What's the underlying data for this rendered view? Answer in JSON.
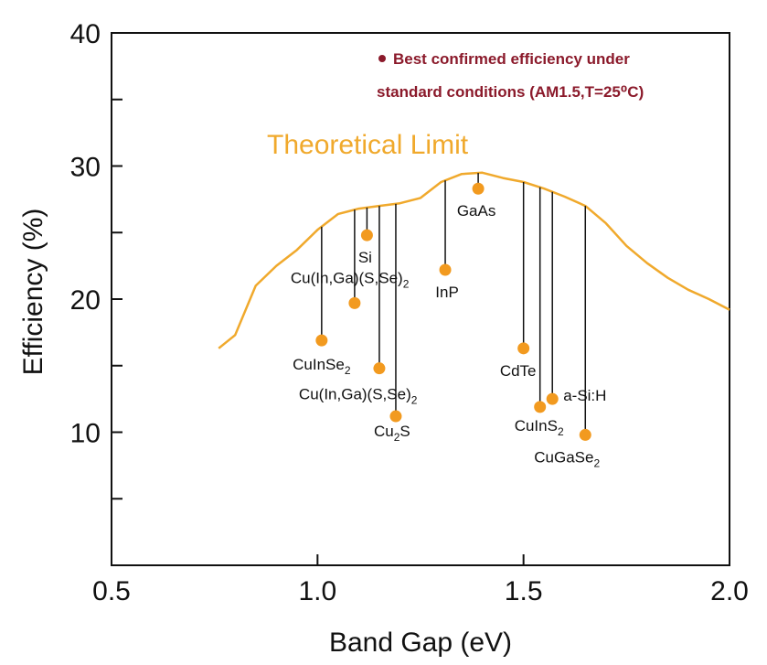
{
  "colors": {
    "limit": "#F0A92C",
    "point": "#F29A1F",
    "legend": "#8B1A2B",
    "axis": "#111111"
  },
  "chart_data": {
    "type": "scatter",
    "xlabel": "Band Gap (eV)",
    "ylabel": "Efficiency (%)",
    "xlim": [
      0.5,
      2.0
    ],
    "ylim": [
      0,
      40
    ],
    "x_ticks": [
      "0.5",
      "1.0",
      "1.5",
      "2.0"
    ],
    "x_tick_values": [
      0.5,
      1.0,
      1.5,
      2.0
    ],
    "y_tick_labels": [
      "10",
      "20",
      "30",
      "40"
    ],
    "y_tick_label_values": [
      10,
      20,
      30,
      40
    ],
    "y_minor_ticks": [
      5,
      15,
      25,
      35
    ],
    "grid": false,
    "legend": {
      "placement": "top-right",
      "lines": [
        "Best confirmed efficiency under",
        "standard conditions (AM1.5,T=25⁰C)"
      ]
    },
    "theoretical_limit": {
      "name": "Theoretical Limit",
      "points": [
        [
          0.76,
          16.3
        ],
        [
          0.8,
          17.3
        ],
        [
          0.85,
          21.0
        ],
        [
          0.9,
          22.5
        ],
        [
          0.95,
          23.7
        ],
        [
          1.0,
          25.2
        ],
        [
          1.05,
          26.4
        ],
        [
          1.1,
          26.8
        ],
        [
          1.15,
          27.0
        ],
        [
          1.2,
          27.2
        ],
        [
          1.25,
          27.6
        ],
        [
          1.3,
          28.8
        ],
        [
          1.35,
          29.4
        ],
        [
          1.4,
          29.5
        ],
        [
          1.45,
          29.1
        ],
        [
          1.5,
          28.8
        ],
        [
          1.55,
          28.3
        ],
        [
          1.6,
          27.7
        ],
        [
          1.65,
          27.0
        ],
        [
          1.7,
          25.7
        ],
        [
          1.75,
          24.0
        ],
        [
          1.8,
          22.7
        ],
        [
          1.85,
          21.6
        ],
        [
          1.9,
          20.7
        ],
        [
          1.95,
          20.0
        ],
        [
          2.0,
          19.2
        ]
      ]
    },
    "points": [
      {
        "label": "CuInSe",
        "sub": "2",
        "x": 1.01,
        "y": 16.9
      },
      {
        "label": "Cu(In,Ga)(S,Se)",
        "sub": "2",
        "x": 1.09,
        "y": 19.7
      },
      {
        "label": "Si",
        "sub": "",
        "x": 1.12,
        "y": 24.8
      },
      {
        "label": "Cu(In,Ga)(S,Se)",
        "sub": "2",
        "x": 1.15,
        "y": 14.8
      },
      {
        "label": "Cu",
        "sub": "2",
        "tail": "S",
        "x": 1.19,
        "y": 11.2
      },
      {
        "label": "InP",
        "sub": "",
        "x": 1.31,
        "y": 22.2
      },
      {
        "label": "GaAs",
        "sub": "",
        "x": 1.39,
        "y": 28.3
      },
      {
        "label": "CdTe",
        "sub": "",
        "x": 1.5,
        "y": 16.3
      },
      {
        "label": "CuInS",
        "sub": "2",
        "x": 1.54,
        "y": 11.9
      },
      {
        "label": "a-Si:H",
        "sub": "",
        "x": 1.57,
        "y": 12.5
      },
      {
        "label": "CuGaSe",
        "sub": "2",
        "x": 1.65,
        "y": 9.8
      }
    ]
  }
}
